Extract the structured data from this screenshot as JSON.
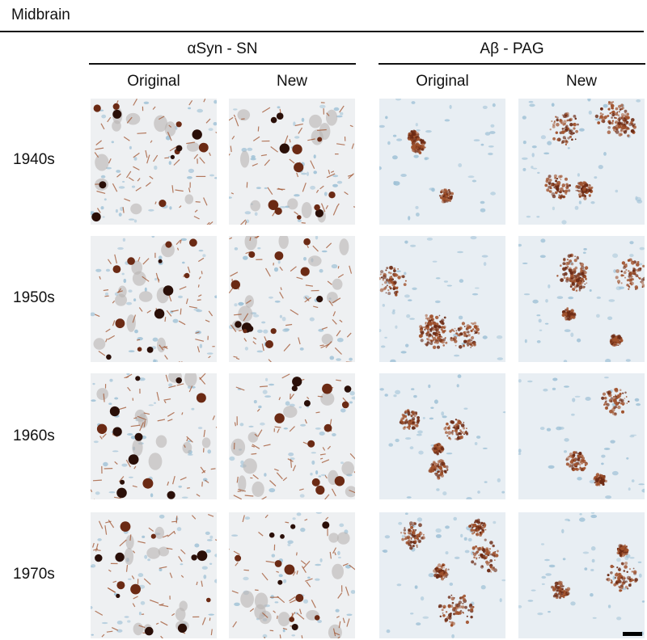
{
  "figure": {
    "title": "Midbrain",
    "groups": [
      {
        "label": "αSyn - SN",
        "columns": [
          "Original",
          "New"
        ]
      },
      {
        "label": "Aβ - PAG",
        "columns": [
          "Original",
          "New"
        ]
      }
    ],
    "rows": [
      "1940s",
      "1950s",
      "1960s",
      "1970s"
    ]
  },
  "colors": {
    "background_tissue": "#eef1f4",
    "nuclei_blue": "#9fc1d6",
    "stain_brown": "#6b2a14",
    "stain_brown_light": "#a0522d",
    "text": "#111111"
  },
  "panels": {
    "asyn": "αSyn immunohistochemistry micrographs (substantia nigra)",
    "abeta": "Aβ immunohistochemistry micrographs (periaqueductal gray)"
  }
}
